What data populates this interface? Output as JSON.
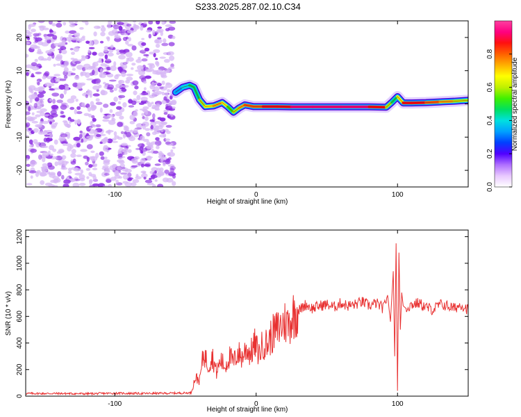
{
  "page_title": "S233.2025.287.02.10.C34",
  "colors": {
    "axis": "#000000",
    "snr_line": "#e83030",
    "noise_dot": "#8a2be2",
    "noise_dot_light": "#d7b8f5",
    "track_outline": "#4a00d8"
  },
  "chart_data": [
    {
      "id": "spectrogram",
      "type": "heatmap",
      "title": "S233.2025.287.02.10.C34",
      "xlabel": "Height of straight line (km)",
      "ylabel": "Frequency (Hz)",
      "xlim": [
        -163,
        150
      ],
      "ylim": [
        -25,
        25
      ],
      "xticks": [
        -100,
        0,
        100
      ],
      "xtick_labels": [
        "-100",
        "0",
        "100"
      ],
      "yticks": [
        -20,
        -10,
        0,
        10,
        20
      ],
      "ytick_labels": [
        "-20",
        "-10",
        "0",
        "10",
        "20"
      ],
      "noise_region_x": [
        -163,
        -58
      ],
      "track": {
        "x": [
          -57,
          -52,
          -47,
          -44,
          -40,
          -36,
          -30,
          -24,
          -20,
          -16,
          -12,
          -8,
          -2,
          5,
          15,
          25,
          40,
          60,
          80,
          92,
          96,
          100,
          104,
          110,
          120,
          130,
          140,
          150
        ],
        "y": [
          3.5,
          5.0,
          5.6,
          5.0,
          1.2,
          -0.8,
          -0.6,
          0.4,
          -0.9,
          -2.5,
          -1.2,
          -0.3,
          -0.8,
          -0.8,
          -0.8,
          -0.9,
          -0.9,
          -0.9,
          -0.9,
          -1.0,
          0.5,
          2.2,
          0.3,
          0.3,
          0.4,
          0.6,
          0.8,
          1.1
        ],
        "amp": [
          0.3,
          0.4,
          0.45,
          0.42,
          0.55,
          0.6,
          0.7,
          0.72,
          0.62,
          0.5,
          0.7,
          0.78,
          0.8,
          0.82,
          0.86,
          0.92,
          0.94,
          0.95,
          0.93,
          0.75,
          0.45,
          0.5,
          0.85,
          0.95,
          0.85,
          0.75,
          0.65,
          0.55
        ]
      },
      "colorbar": {
        "label": "Normalized spectral amplitude",
        "range": [
          0.0,
          1.0
        ],
        "ticks": [
          0.0,
          0.2,
          0.4,
          0.6,
          0.8
        ],
        "tick_labels": [
          "0.0",
          "0.2",
          "0.4",
          "0.6",
          "0.8"
        ],
        "colors": [
          "#ffffff",
          "#e8c8ff",
          "#b070ff",
          "#5000ff",
          "#0040ff",
          "#00a0ff",
          "#00e0e0",
          "#00e060",
          "#40f000",
          "#c0f000",
          "#ffff00",
          "#ffb000",
          "#ff6000",
          "#ff1010",
          "#ff0080",
          "#ff40a0"
        ]
      }
    },
    {
      "id": "snr",
      "type": "line",
      "xlabel": "Height of straight line (km)",
      "ylabel": "SNR (10 * v/v)",
      "xlim": [
        -163,
        150
      ],
      "ylim": [
        0,
        1250
      ],
      "xticks": [
        -100,
        0,
        100
      ],
      "xtick_labels": [
        "-100",
        "0",
        "100"
      ],
      "yticks": [
        0,
        200,
        400,
        600,
        800,
        1000,
        1200
      ],
      "ytick_labels": [
        "0",
        "200",
        "400",
        "600",
        "800",
        "1000",
        "1200"
      ],
      "series": [
        {
          "name": "SNR",
          "x": [
            -163,
            -140,
            -120,
            -100,
            -80,
            -60,
            -46,
            -43,
            -40,
            -37,
            -34,
            -31,
            -28,
            -25,
            -22,
            -19,
            -16,
            -13,
            -10,
            -7,
            -4,
            -1,
            2,
            5,
            8,
            11,
            14,
            17,
            20,
            23,
            26,
            29,
            32,
            35,
            40,
            45,
            50,
            55,
            60,
            65,
            70,
            75,
            80,
            85,
            90,
            93,
            95,
            97,
            98,
            99,
            100,
            101,
            102,
            103,
            104,
            106,
            110,
            115,
            120,
            125,
            130,
            135,
            140,
            145,
            150
          ],
          "y": [
            20,
            20,
            18,
            22,
            20,
            22,
            25,
            140,
            120,
            330,
            230,
            300,
            180,
            270,
            220,
            300,
            250,
            330,
            290,
            360,
            320,
            390,
            320,
            400,
            390,
            460,
            490,
            520,
            560,
            540,
            610,
            640,
            660,
            690,
            660,
            680,
            690,
            670,
            700,
            680,
            690,
            710,
            680,
            700,
            660,
            760,
            560,
            940,
            300,
            1150,
            40,
            1080,
            500,
            780,
            680,
            660,
            690,
            700,
            670,
            650,
            690,
            680,
            660,
            690,
            650
          ]
        }
      ]
    }
  ]
}
